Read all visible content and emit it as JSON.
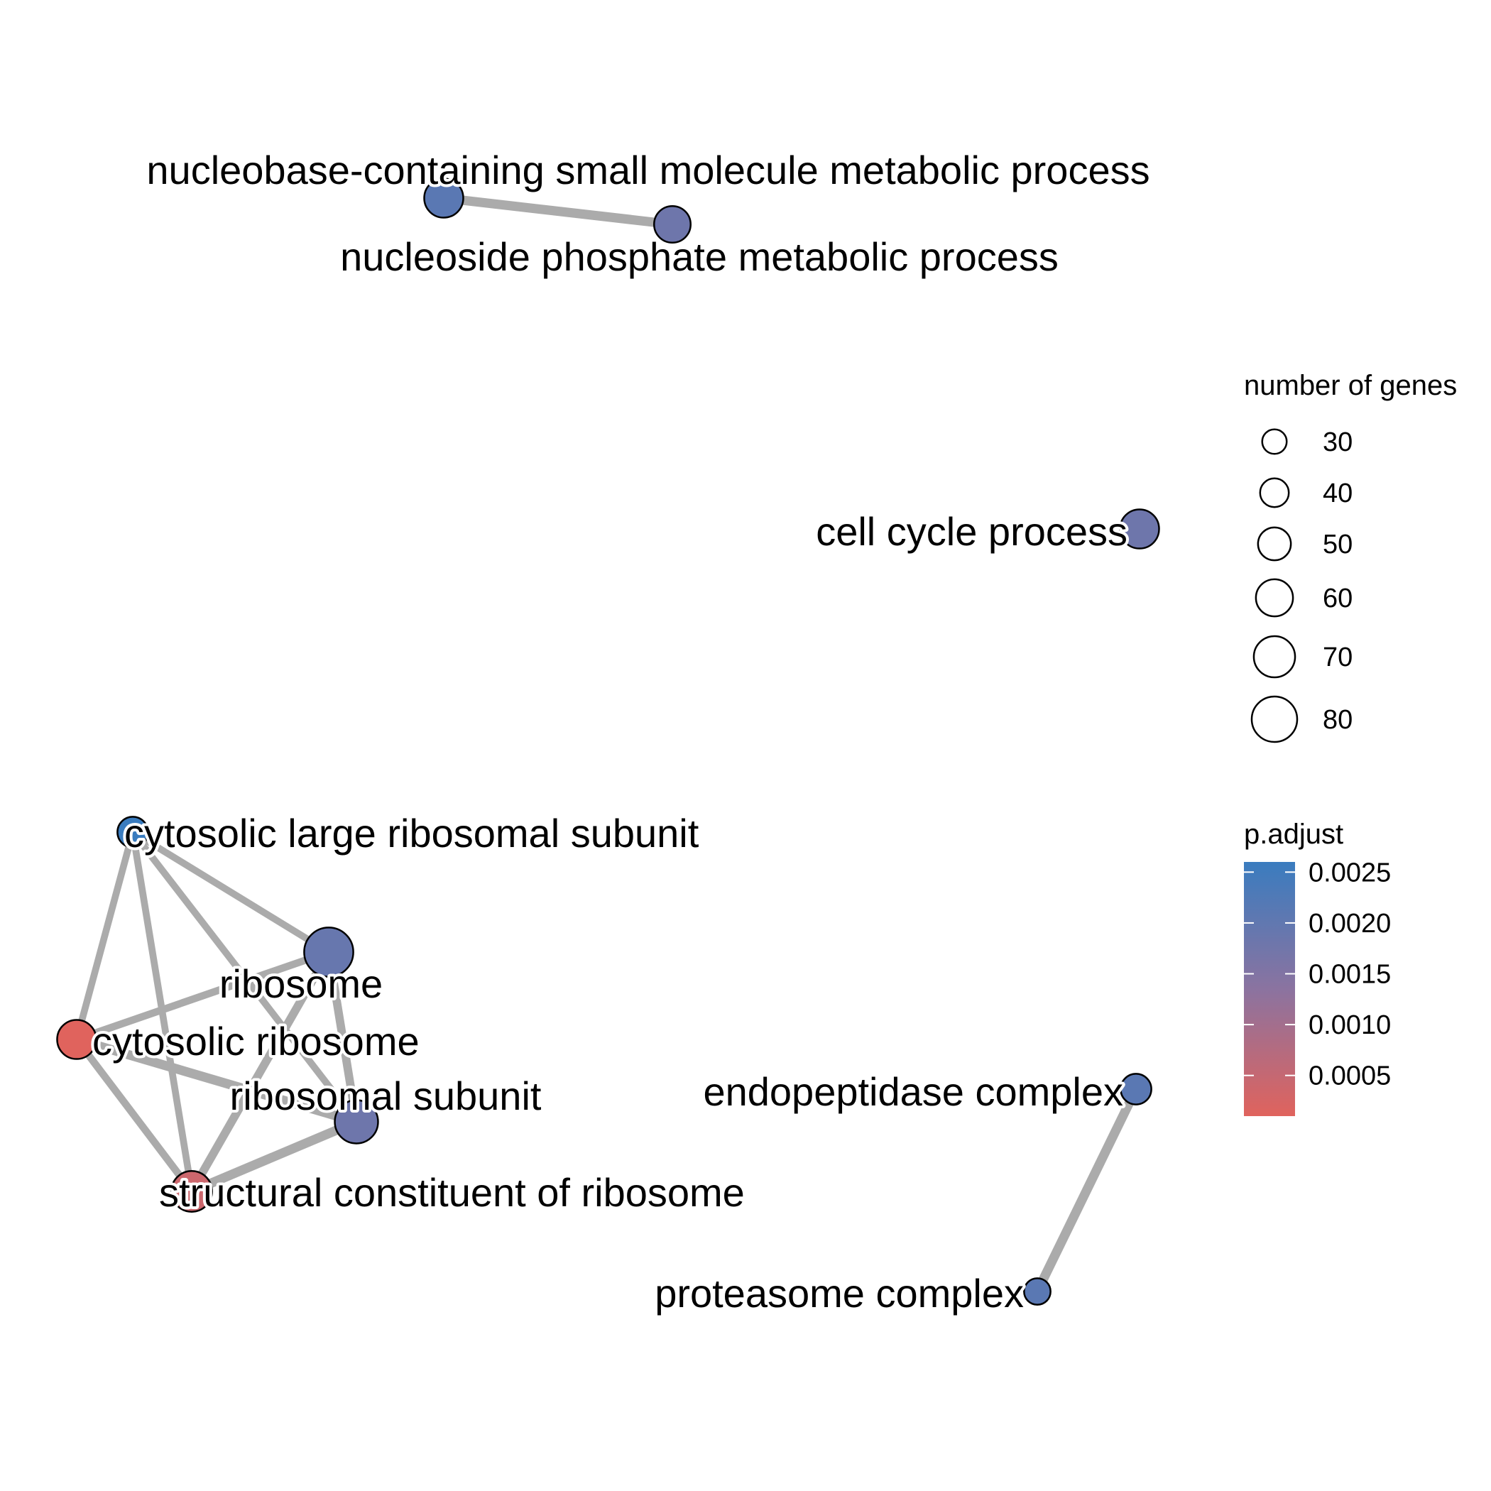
{
  "network": {
    "nodes": [
      {
        "id": "nucleobase",
        "label": "nucleobase-containing small molecule metabolic process",
        "genes": 58,
        "p_adjust": 0.0021
      },
      {
        "id": "nucleoside",
        "label": "nucleoside phosphate metabolic process",
        "genes": 52,
        "p_adjust": 0.0018
      },
      {
        "id": "cellcycle",
        "label": "cell cycle process",
        "genes": 58,
        "p_adjust": 0.0018
      },
      {
        "id": "cytolarge",
        "label": "cytosolic large ribosomal subunit",
        "genes": 38,
        "p_adjust": 0.0026
      },
      {
        "id": "ribosome",
        "label": "ribosome",
        "genes": 82,
        "p_adjust": 0.0019
      },
      {
        "id": "cytoribo",
        "label": "cytosolic ribosome",
        "genes": 58,
        "p_adjust": 0.0001
      },
      {
        "id": "ribsub",
        "label": "ribosomal subunit",
        "genes": 68,
        "p_adjust": 0.0018
      },
      {
        "id": "struct",
        "label": "structural constituent of ribosome",
        "genes": 62,
        "p_adjust": 0.0004
      },
      {
        "id": "endopep",
        "label": "endopeptidase complex",
        "genes": 38,
        "p_adjust": 0.0021
      },
      {
        "id": "proteasome",
        "label": "proteasome complex",
        "genes": 28,
        "p_adjust": 0.0021
      }
    ],
    "edges": [
      {
        "from": "nucleobase",
        "to": "nucleoside",
        "weight": 0.8
      },
      {
        "from": "cytolarge",
        "to": "ribosome",
        "weight": 0.55
      },
      {
        "from": "cytolarge",
        "to": "cytoribo",
        "weight": 0.55
      },
      {
        "from": "cytolarge",
        "to": "ribsub",
        "weight": 0.55
      },
      {
        "from": "cytolarge",
        "to": "struct",
        "weight": 0.55
      },
      {
        "from": "ribosome",
        "to": "cytoribo",
        "weight": 0.6
      },
      {
        "from": "ribosome",
        "to": "ribsub",
        "weight": 0.7
      },
      {
        "from": "ribosome",
        "to": "struct",
        "weight": 0.7
      },
      {
        "from": "cytoribo",
        "to": "ribsub",
        "weight": 0.8
      },
      {
        "from": "cytoribo",
        "to": "struct",
        "weight": 0.6
      },
      {
        "from": "ribsub",
        "to": "struct",
        "weight": 0.8
      },
      {
        "from": "endopep",
        "to": "proteasome",
        "weight": 0.8
      }
    ]
  },
  "legend": {
    "size_title": "number of genes",
    "sizes": [
      {
        "genes": 30,
        "label": "30"
      },
      {
        "genes": 40,
        "label": "40"
      },
      {
        "genes": 50,
        "label": "50"
      },
      {
        "genes": 60,
        "label": "60"
      },
      {
        "genes": 70,
        "label": "70"
      },
      {
        "genes": 80,
        "label": "80"
      }
    ],
    "color_title": "p.adjust",
    "color_ticks": [
      {
        "value": 0.0025,
        "label": "0.0025"
      },
      {
        "value": 0.002,
        "label": "0.0020"
      },
      {
        "value": 0.0015,
        "label": "0.0015"
      },
      {
        "value": 0.001,
        "label": "0.0010"
      },
      {
        "value": 0.0005,
        "label": "0.0005"
      }
    ],
    "color_low": "#e0635d",
    "color_mid": "#8b73a0",
    "color_high": "#3a7cbf"
  },
  "colors": {
    "edge": "#ababab",
    "node_stroke": "#000000",
    "background": "#ffffff"
  }
}
